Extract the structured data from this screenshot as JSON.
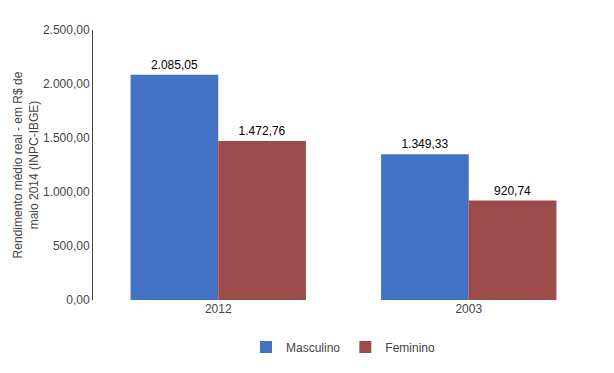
{
  "chart_data": {
    "type": "bar",
    "categories": [
      "2012",
      "2003"
    ],
    "series": [
      {
        "name": "Masculino",
        "color": "#4472C4",
        "values": [
          2085.05,
          1349.33
        ],
        "value_labels": [
          "2.085,05",
          "1.349,33"
        ]
      },
      {
        "name": "Feminino",
        "color": "#9E4B4B",
        "values": [
          1472.76,
          920.74
        ],
        "value_labels": [
          "1.472,76",
          "920,74"
        ]
      }
    ],
    "ylabel": "Rendimento médio real - em R$ de\nmaio 2014 (INPC-IBGE)",
    "ylim": [
      0,
      2500
    ],
    "yticks": [
      {
        "value": 0,
        "label": "0,00"
      },
      {
        "value": 500,
        "label": "500,00"
      },
      {
        "value": 1000,
        "label": "1.000,00"
      },
      {
        "value": 1500,
        "label": "1.500,00"
      },
      {
        "value": 2000,
        "label": "2.000,00"
      },
      {
        "value": 2500,
        "label": "2.500,00"
      }
    ],
    "data_labels": true,
    "grid": false,
    "legend": "bottom"
  }
}
